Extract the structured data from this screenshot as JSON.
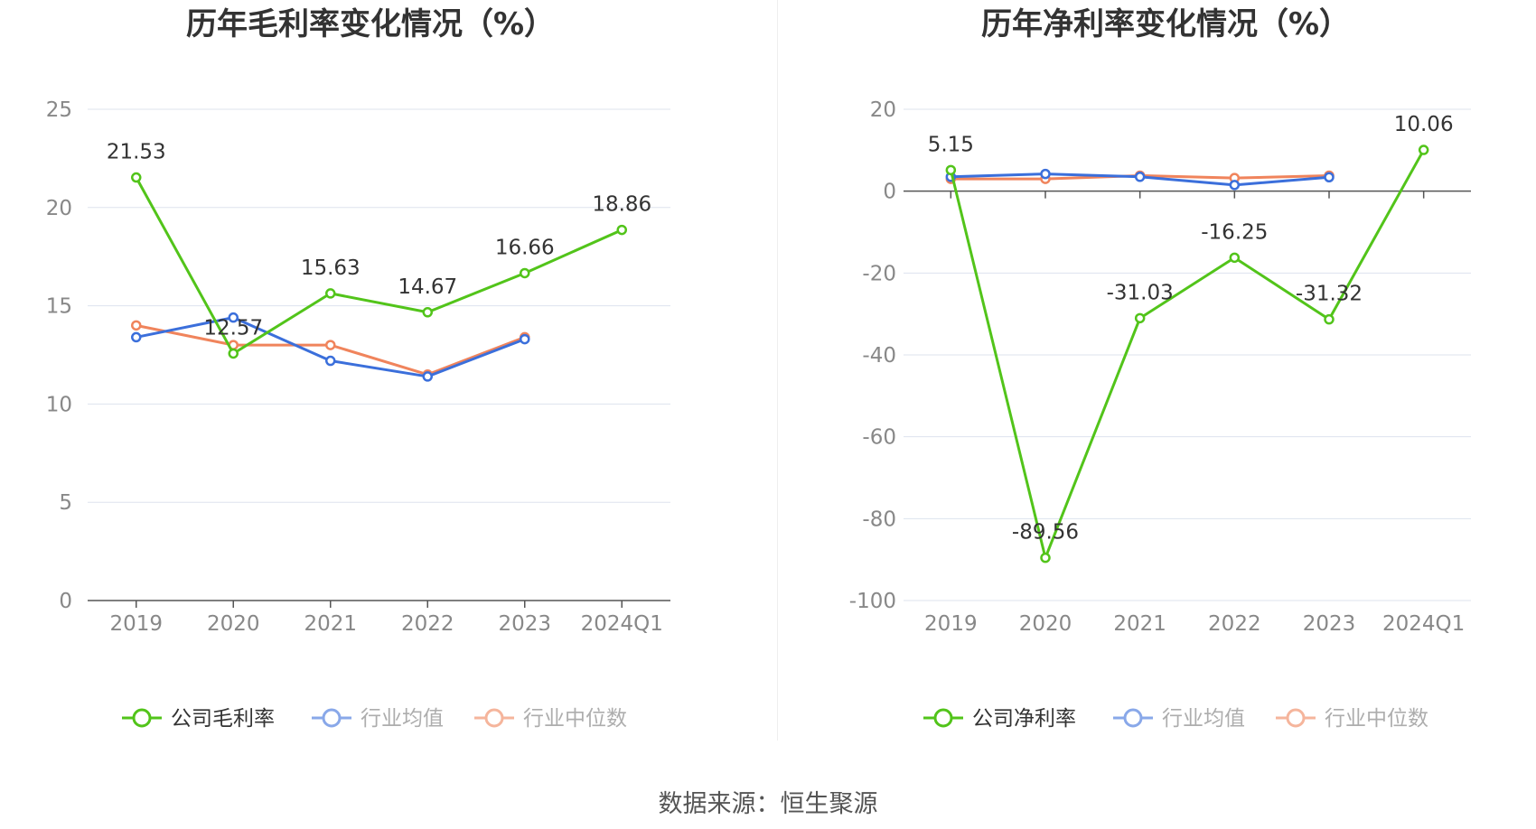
{
  "colors": {
    "company": "#52c41a",
    "avg": "#3b6fdb",
    "median": "#f0845c",
    "grid": "#dde3ee",
    "axis": "#555555"
  },
  "chart_data": [
    {
      "type": "line",
      "title": "历年毛利率变化情况（%）",
      "categories": [
        "2019",
        "2020",
        "2021",
        "2022",
        "2023",
        "2024Q1"
      ],
      "ylim": [
        0,
        25
      ],
      "yticks": [
        0,
        5,
        10,
        15,
        20,
        25
      ],
      "grid": true,
      "legend_position": "bottom",
      "series": [
        {
          "name": "公司毛利率",
          "key": "company",
          "values": [
            21.53,
            12.57,
            15.63,
            14.67,
            16.66,
            18.86
          ],
          "labels": [
            "21.53",
            "12.57",
            "15.63",
            "14.67",
            "16.66",
            "18.86"
          ]
        },
        {
          "name": "行业均值",
          "key": "avg",
          "values": [
            13.4,
            14.4,
            12.2,
            11.4,
            13.3,
            null
          ]
        },
        {
          "name": "行业中位数",
          "key": "median",
          "values": [
            14.0,
            13.0,
            13.0,
            11.5,
            13.4,
            null
          ]
        }
      ]
    },
    {
      "type": "line",
      "title": "历年净利率变化情况（%）",
      "categories": [
        "2019",
        "2020",
        "2021",
        "2022",
        "2023",
        "2024Q1"
      ],
      "ylim": [
        -100,
        20
      ],
      "yticks": [
        -100,
        -80,
        -60,
        -40,
        -20,
        0,
        20
      ],
      "grid": true,
      "legend_position": "bottom",
      "series": [
        {
          "name": "公司净利率",
          "key": "company",
          "values": [
            5.15,
            -89.56,
            -31.03,
            -16.25,
            -31.32,
            10.06
          ],
          "labels": [
            "5.15",
            "-89.56",
            "-31.03",
            "-16.25",
            "-31.32",
            "10.06"
          ]
        },
        {
          "name": "行业均值",
          "key": "avg",
          "values": [
            3.5,
            4.2,
            3.5,
            1.5,
            3.4,
            null
          ]
        },
        {
          "name": "行业中位数",
          "key": "median",
          "values": [
            3.0,
            3.0,
            3.8,
            3.2,
            3.8,
            null
          ]
        }
      ]
    }
  ],
  "source": "数据来源：恒生聚源"
}
